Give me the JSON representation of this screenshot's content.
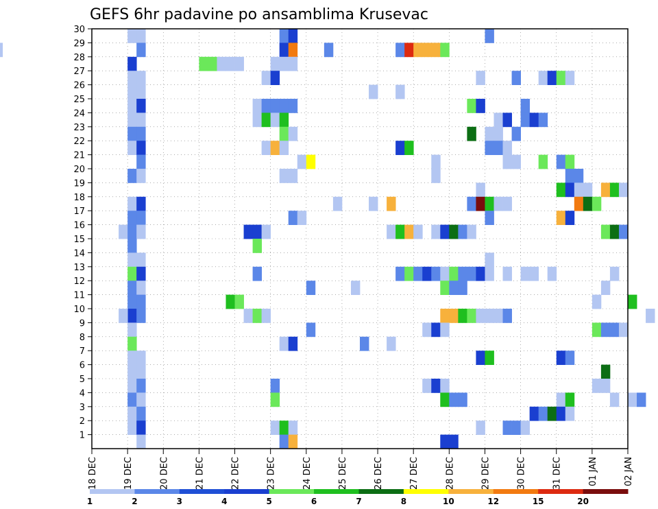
{
  "chart_data": {
    "type": "heatmap",
    "title": "GEFS 6hr padavine po ansamblima Krusevac",
    "x_tick_labels": [
      "18 DEC",
      "19 DEC",
      "20 DEC",
      "21 DEC",
      "22 DEC",
      "23 DEC",
      "24 DEC",
      "25 DEC",
      "26 DEC",
      "27 DEC",
      "28 DEC",
      "29 DEC",
      "30 DEC",
      "31 DEC",
      "01 JAN",
      "02 JAN"
    ],
    "y_tick_labels": [
      "1",
      "2",
      "3",
      "4",
      "5",
      "6",
      "7",
      "8",
      "9",
      "10",
      "11",
      "12",
      "13",
      "14",
      "15",
      "16",
      "17",
      "18",
      "19",
      "20",
      "21",
      "22",
      "23",
      "24",
      "25",
      "26",
      "27",
      "28",
      "29",
      "30"
    ],
    "x_step_unit": "6hr",
    "y_range": [
      0,
      30
    ],
    "grid": true,
    "colorbar": {
      "labels": [
        "1",
        "2",
        "3",
        "4",
        "5",
        "6",
        "7",
        "8",
        "10",
        "12",
        "15",
        "20"
      ],
      "colors": [
        "#b3c6f2",
        "#5b87e8",
        "#1f4fd6",
        "#1a3fd0",
        "#6be85a",
        "#1fbf1f",
        "#0c6e14",
        "#ffff00",
        "#f7b13c",
        "#f27a10",
        "#dd2a10",
        "#7a0d0d"
      ]
    },
    "cells": [
      [
        40,
        30,
        1
      ],
      [
        41,
        30,
        1
      ],
      [
        57,
        30,
        2
      ],
      [
        58,
        30,
        4
      ],
      [
        80,
        30,
        2
      ],
      [
        41,
        29,
        2
      ],
      [
        25,
        29,
        1
      ],
      [
        57,
        29,
        4
      ],
      [
        58,
        29,
        12
      ],
      [
        62,
        29,
        2
      ],
      [
        70,
        29,
        2
      ],
      [
        71,
        29,
        15
      ],
      [
        72,
        29,
        10
      ],
      [
        73,
        29,
        10
      ],
      [
        74,
        29,
        10
      ],
      [
        75,
        29,
        5
      ],
      [
        40,
        28,
        4
      ],
      [
        48,
        28,
        5
      ],
      [
        49,
        28,
        5
      ],
      [
        50,
        28,
        1
      ],
      [
        51,
        28,
        1
      ],
      [
        52,
        28,
        1
      ],
      [
        56,
        28,
        1
      ],
      [
        57,
        28,
        1
      ],
      [
        58,
        28,
        1
      ],
      [
        40,
        27,
        1
      ],
      [
        41,
        27,
        1
      ],
      [
        55,
        27,
        1
      ],
      [
        56,
        27,
        4
      ],
      [
        79,
        27,
        1
      ],
      [
        83,
        27,
        2
      ],
      [
        86,
        27,
        1
      ],
      [
        87,
        27,
        4
      ],
      [
        88,
        27,
        5
      ],
      [
        89,
        27,
        1
      ],
      [
        40,
        26,
        1
      ],
      [
        41,
        26,
        1
      ],
      [
        67,
        26,
        1
      ],
      [
        70,
        26,
        1
      ],
      [
        40,
        25,
        1
      ],
      [
        41,
        25,
        4
      ],
      [
        54,
        25,
        1
      ],
      [
        55,
        25,
        2
      ],
      [
        56,
        25,
        2
      ],
      [
        57,
        25,
        2
      ],
      [
        58,
        25,
        2
      ],
      [
        78,
        25,
        5
      ],
      [
        79,
        25,
        4
      ],
      [
        84,
        25,
        2
      ],
      [
        40,
        24,
        1
      ],
      [
        41,
        24,
        1
      ],
      [
        54,
        24,
        1
      ],
      [
        55,
        24,
        6
      ],
      [
        56,
        24,
        1
      ],
      [
        57,
        24,
        6
      ],
      [
        81,
        24,
        1
      ],
      [
        82,
        24,
        4
      ],
      [
        84,
        24,
        2
      ],
      [
        85,
        24,
        4
      ],
      [
        86,
        24,
        2
      ],
      [
        40,
        23,
        2
      ],
      [
        41,
        23,
        2
      ],
      [
        57,
        23,
        5
      ],
      [
        58,
        23,
        1
      ],
      [
        78,
        23,
        7
      ],
      [
        80,
        23,
        1
      ],
      [
        81,
        23,
        1
      ],
      [
        83,
        23,
        2
      ],
      [
        40,
        22,
        1
      ],
      [
        41,
        22,
        4
      ],
      [
        55,
        22,
        1
      ],
      [
        56,
        22,
        10
      ],
      [
        57,
        22,
        1
      ],
      [
        70,
        22,
        4
      ],
      [
        71,
        22,
        6
      ],
      [
        80,
        22,
        2
      ],
      [
        81,
        22,
        2
      ],
      [
        82,
        22,
        1
      ],
      [
        41,
        21,
        2
      ],
      [
        59,
        21,
        1
      ],
      [
        60,
        21,
        8
      ],
      [
        74,
        21,
        1
      ],
      [
        82,
        21,
        1
      ],
      [
        83,
        21,
        1
      ],
      [
        86,
        21,
        5
      ],
      [
        88,
        21,
        2
      ],
      [
        89,
        21,
        5
      ],
      [
        40,
        20,
        2
      ],
      [
        41,
        20,
        1
      ],
      [
        57,
        20,
        1
      ],
      [
        58,
        20,
        1
      ],
      [
        74,
        20,
        1
      ],
      [
        89,
        20,
        2
      ],
      [
        90,
        20,
        2
      ],
      [
        79,
        19,
        1
      ],
      [
        88,
        19,
        6
      ],
      [
        89,
        19,
        4
      ],
      [
        90,
        19,
        1
      ],
      [
        91,
        19,
        1
      ],
      [
        93,
        19,
        10
      ],
      [
        94,
        19,
        6
      ],
      [
        95,
        19,
        1
      ],
      [
        40,
        18,
        1
      ],
      [
        41,
        18,
        4
      ],
      [
        63,
        18,
        1
      ],
      [
        67,
        18,
        1
      ],
      [
        69,
        18,
        10
      ],
      [
        78,
        18,
        2
      ],
      [
        79,
        18,
        20
      ],
      [
        80,
        18,
        6
      ],
      [
        81,
        18,
        1
      ],
      [
        82,
        18,
        1
      ],
      [
        90,
        18,
        12
      ],
      [
        91,
        18,
        7
      ],
      [
        92,
        18,
        5
      ],
      [
        40,
        17,
        2
      ],
      [
        41,
        17,
        2
      ],
      [
        58,
        17,
        2
      ],
      [
        59,
        17,
        1
      ],
      [
        80,
        17,
        2
      ],
      [
        88,
        17,
        10
      ],
      [
        89,
        17,
        4
      ],
      [
        39,
        16,
        1
      ],
      [
        40,
        16,
        2
      ],
      [
        41,
        16,
        1
      ],
      [
        53,
        16,
        4
      ],
      [
        54,
        16,
        4
      ],
      [
        55,
        16,
        1
      ],
      [
        69,
        16,
        1
      ],
      [
        70,
        16,
        6
      ],
      [
        71,
        16,
        10
      ],
      [
        72,
        16,
        1
      ],
      [
        74,
        16,
        1
      ],
      [
        75,
        16,
        4
      ],
      [
        76,
        16,
        7
      ],
      [
        77,
        16,
        2
      ],
      [
        78,
        16,
        1
      ],
      [
        93,
        16,
        5
      ],
      [
        94,
        16,
        7
      ],
      [
        95,
        16,
        2
      ],
      [
        40,
        15,
        2
      ],
      [
        54,
        15,
        5
      ],
      [
        40,
        14,
        1
      ],
      [
        41,
        14,
        1
      ],
      [
        80,
        14,
        1
      ],
      [
        40,
        13,
        5
      ],
      [
        41,
        13,
        4
      ],
      [
        54,
        13,
        2
      ],
      [
        70,
        13,
        2
      ],
      [
        71,
        13,
        5
      ],
      [
        72,
        13,
        2
      ],
      [
        73,
        13,
        4
      ],
      [
        74,
        13,
        2
      ],
      [
        75,
        13,
        1
      ],
      [
        76,
        13,
        5
      ],
      [
        77,
        13,
        2
      ],
      [
        78,
        13,
        2
      ],
      [
        79,
        13,
        4
      ],
      [
        80,
        13,
        1
      ],
      [
        82,
        13,
        1
      ],
      [
        84,
        13,
        1
      ],
      [
        85,
        13,
        1
      ],
      [
        87,
        13,
        1
      ],
      [
        94,
        13,
        1
      ],
      [
        40,
        12,
        2
      ],
      [
        41,
        12,
        1
      ],
      [
        60,
        12,
        2
      ],
      [
        65,
        12,
        1
      ],
      [
        75,
        12,
        5
      ],
      [
        76,
        12,
        2
      ],
      [
        77,
        12,
        2
      ],
      [
        93,
        12,
        1
      ],
      [
        40,
        11,
        2
      ],
      [
        41,
        11,
        2
      ],
      [
        51,
        11,
        6
      ],
      [
        52,
        11,
        5
      ],
      [
        92,
        11,
        1
      ],
      [
        96,
        11,
        6
      ],
      [
        40,
        10,
        4
      ],
      [
        41,
        10,
        2
      ],
      [
        39,
        10,
        1
      ],
      [
        53,
        10,
        1
      ],
      [
        54,
        10,
        5
      ],
      [
        55,
        10,
        1
      ],
      [
        75,
        10,
        10
      ],
      [
        76,
        10,
        10
      ],
      [
        77,
        10,
        6
      ],
      [
        78,
        10,
        5
      ],
      [
        79,
        10,
        1
      ],
      [
        80,
        10,
        1
      ],
      [
        81,
        10,
        1
      ],
      [
        82,
        10,
        2
      ],
      [
        98,
        10,
        1
      ],
      [
        40,
        9,
        1
      ],
      [
        60,
        9,
        2
      ],
      [
        73,
        9,
        1
      ],
      [
        74,
        9,
        4
      ],
      [
        75,
        9,
        1
      ],
      [
        92,
        9,
        5
      ],
      [
        93,
        9,
        2
      ],
      [
        94,
        9,
        2
      ],
      [
        95,
        9,
        1
      ],
      [
        40,
        8,
        5
      ],
      [
        57,
        8,
        1
      ],
      [
        58,
        8,
        4
      ],
      [
        66,
        8,
        2
      ],
      [
        69,
        8,
        1
      ],
      [
        40,
        7,
        1
      ],
      [
        41,
        7,
        1
      ],
      [
        79,
        7,
        4
      ],
      [
        80,
        7,
        6
      ],
      [
        88,
        7,
        4
      ],
      [
        89,
        7,
        2
      ],
      [
        40,
        6,
        1
      ],
      [
        41,
        6,
        1
      ],
      [
        93,
        6,
        7
      ],
      [
        40,
        5,
        1
      ],
      [
        41,
        5,
        2
      ],
      [
        56,
        5,
        2
      ],
      [
        73,
        5,
        1
      ],
      [
        74,
        5,
        4
      ],
      [
        75,
        5,
        1
      ],
      [
        92,
        5,
        1
      ],
      [
        93,
        5,
        1
      ],
      [
        40,
        4,
        2
      ],
      [
        41,
        4,
        1
      ],
      [
        56,
        4,
        5
      ],
      [
        75,
        4,
        6
      ],
      [
        76,
        4,
        2
      ],
      [
        77,
        4,
        2
      ],
      [
        88,
        4,
        1
      ],
      [
        89,
        4,
        6
      ],
      [
        94,
        4,
        1
      ],
      [
        96,
        4,
        1
      ],
      [
        97,
        4,
        2
      ],
      [
        40,
        3,
        1
      ],
      [
        41,
        3,
        2
      ],
      [
        85,
        3,
        4
      ],
      [
        86,
        3,
        2
      ],
      [
        87,
        3,
        7
      ],
      [
        88,
        3,
        4
      ],
      [
        89,
        3,
        1
      ],
      [
        40,
        2,
        1
      ],
      [
        41,
        2,
        4
      ],
      [
        56,
        2,
        1
      ],
      [
        57,
        2,
        6
      ],
      [
        58,
        2,
        1
      ],
      [
        79,
        2,
        1
      ],
      [
        82,
        2,
        2
      ],
      [
        83,
        2,
        2
      ],
      [
        84,
        2,
        1
      ],
      [
        41,
        1,
        1
      ],
      [
        57,
        1,
        2
      ],
      [
        58,
        1,
        10
      ],
      [
        75,
        1,
        4
      ],
      [
        76,
        1,
        4
      ]
    ]
  }
}
